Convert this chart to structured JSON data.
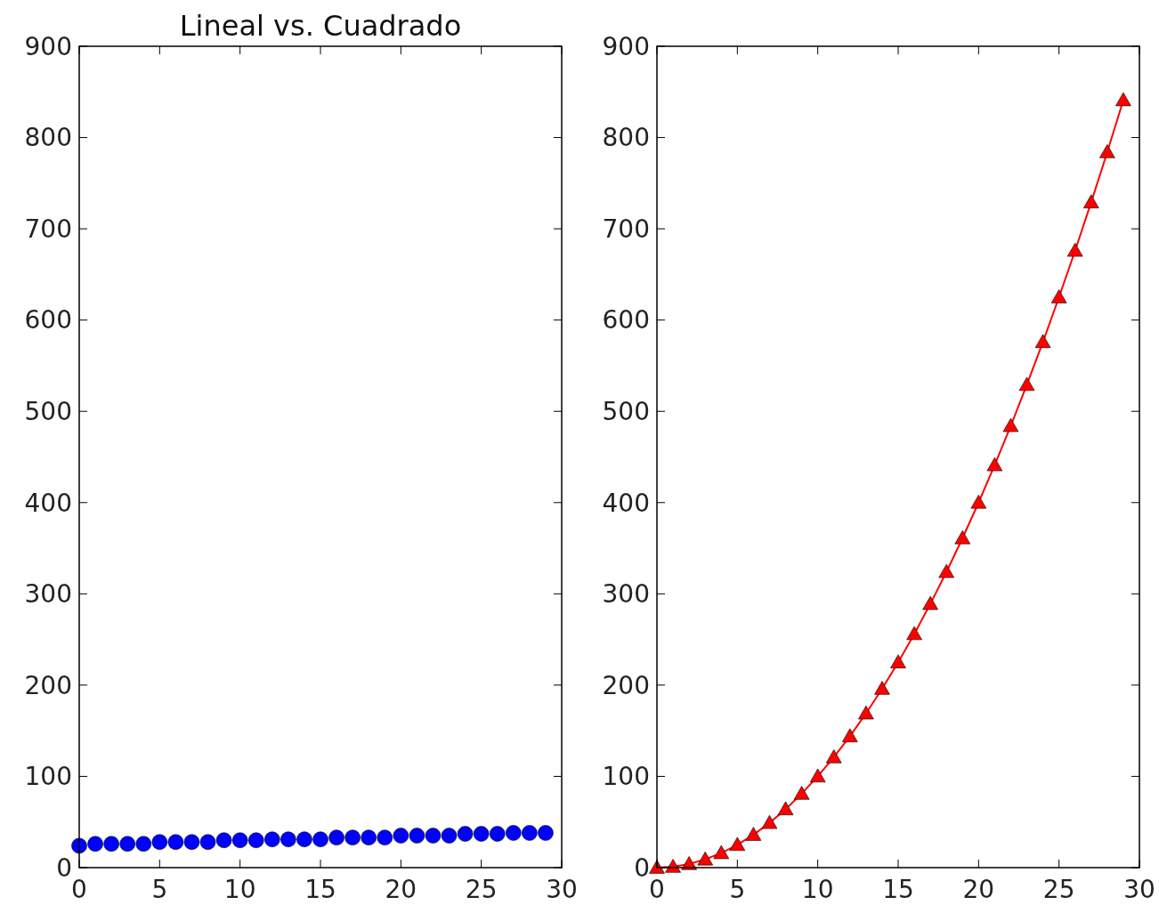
{
  "chart_data": [
    {
      "type": "scatter",
      "title": "Lineal vs. Cuadrado",
      "x": [
        0,
        1,
        2,
        3,
        4,
        5,
        6,
        7,
        8,
        9,
        10,
        11,
        12,
        13,
        14,
        15,
        16,
        17,
        18,
        19,
        20,
        21,
        22,
        23,
        24,
        25,
        26,
        27,
        28,
        29
      ],
      "values": [
        24,
        26,
        26,
        26,
        26,
        28,
        28,
        28,
        28,
        30,
        30,
        30,
        31,
        31,
        31,
        31,
        33,
        33,
        33,
        33,
        35,
        35,
        35,
        35,
        37,
        37,
        37,
        38,
        38,
        38
      ],
      "color": "#0000ff",
      "marker": "circle",
      "xlim": [
        0,
        30
      ],
      "ylim": [
        0,
        900
      ],
      "xticks": [
        0,
        5,
        10,
        15,
        20,
        25,
        30
      ],
      "yticks": [
        0,
        100,
        200,
        300,
        400,
        500,
        600,
        700,
        800,
        900
      ]
    },
    {
      "type": "line",
      "x": [
        0,
        1,
        2,
        3,
        4,
        5,
        6,
        7,
        8,
        9,
        10,
        11,
        12,
        13,
        14,
        15,
        16,
        17,
        18,
        19,
        20,
        21,
        22,
        23,
        24,
        25,
        26,
        27,
        28,
        29
      ],
      "values": [
        0,
        1,
        4,
        9,
        16,
        25,
        36,
        49,
        64,
        81,
        100,
        121,
        144,
        169,
        196,
        225,
        256,
        289,
        324,
        361,
        400,
        441,
        484,
        529,
        576,
        625,
        676,
        729,
        784,
        841
      ],
      "color": "#ff0000",
      "marker": "triangle",
      "line_style": "solid",
      "xlim": [
        0,
        30
      ],
      "ylim": [
        0,
        900
      ],
      "xticks": [
        0,
        5,
        10,
        15,
        20,
        25,
        30
      ],
      "yticks": [
        0,
        100,
        200,
        300,
        400,
        500,
        600,
        700,
        800,
        900
      ]
    }
  ]
}
